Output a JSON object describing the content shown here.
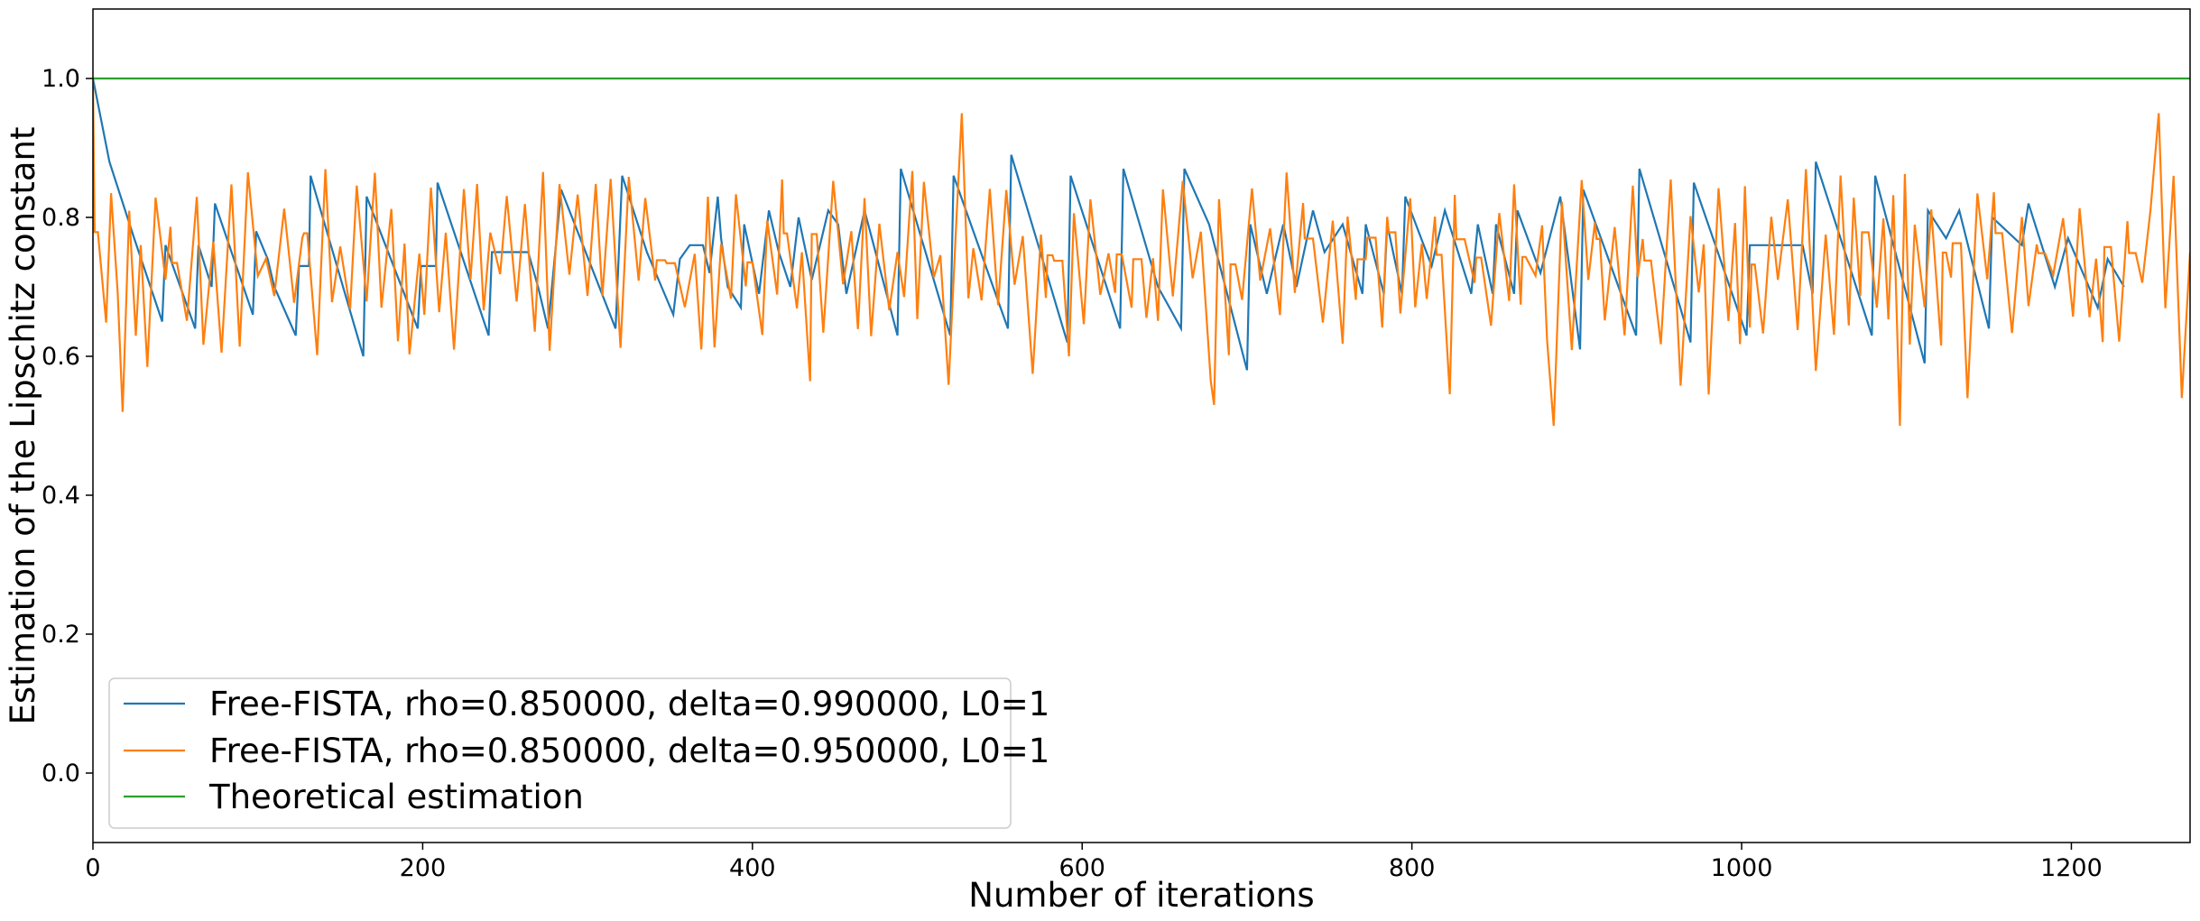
{
  "chart_data": {
    "type": "line",
    "title": "",
    "xlabel": "Number of iterations",
    "ylabel": "Estimation of the Lipschitz constant",
    "xlim": [
      0,
      1272
    ],
    "ylim": [
      -0.1,
      1.1
    ],
    "xticks": [
      0,
      200,
      400,
      600,
      800,
      1000,
      1200
    ],
    "yticks": [
      0.0,
      0.2,
      0.4,
      0.6,
      0.8,
      1.0
    ],
    "xtick_labels": [
      "0",
      "200",
      "400",
      "600",
      "800",
      "1000",
      "1200"
    ],
    "ytick_labels": [
      "0.0",
      "0.2",
      "0.4",
      "0.6",
      "0.8",
      "1.0"
    ],
    "grid": false,
    "legend_position": "lower-left",
    "series": [
      {
        "name": "Free-FISTA, rho=0.850000, delta=0.990000, L0=1",
        "color": "#1f77b4",
        "points": [
          [
            0,
            1.0
          ],
          [
            10,
            0.88
          ],
          [
            25,
            0.77
          ],
          [
            42,
            0.65
          ],
          [
            44,
            0.76
          ],
          [
            62,
            0.64
          ],
          [
            64,
            0.76
          ],
          [
            72,
            0.7
          ],
          [
            74,
            0.82
          ],
          [
            97,
            0.66
          ],
          [
            99,
            0.78
          ],
          [
            106,
            0.74
          ],
          [
            110,
            0.7
          ],
          [
            123,
            0.63
          ],
          [
            125,
            0.73
          ],
          [
            131,
            0.73
          ],
          [
            132,
            0.86
          ],
          [
            164,
            0.6
          ],
          [
            166,
            0.83
          ],
          [
            197,
            0.64
          ],
          [
            199,
            0.73
          ],
          [
            208,
            0.73
          ],
          [
            209,
            0.85
          ],
          [
            240,
            0.63
          ],
          [
            242,
            0.75
          ],
          [
            264,
            0.75
          ],
          [
            270,
            0.7
          ],
          [
            276,
            0.64
          ],
          [
            284,
            0.84
          ],
          [
            317,
            0.64
          ],
          [
            321,
            0.86
          ],
          [
            336,
            0.75
          ],
          [
            352,
            0.66
          ],
          [
            356,
            0.74
          ],
          [
            362,
            0.76
          ],
          [
            370,
            0.76
          ],
          [
            374,
            0.72
          ],
          [
            379,
            0.83
          ],
          [
            381,
            0.77
          ],
          [
            385,
            0.7
          ],
          [
            393,
            0.67
          ],
          [
            395,
            0.79
          ],
          [
            404,
            0.69
          ],
          [
            410,
            0.81
          ],
          [
            416,
            0.75
          ],
          [
            423,
            0.7
          ],
          [
            428,
            0.8
          ],
          [
            436,
            0.71
          ],
          [
            446,
            0.81
          ],
          [
            452,
            0.79
          ],
          [
            457,
            0.69
          ],
          [
            468,
            0.81
          ],
          [
            488,
            0.63
          ],
          [
            490,
            0.87
          ],
          [
            520,
            0.63
          ],
          [
            522,
            0.86
          ],
          [
            555,
            0.64
          ],
          [
            557,
            0.89
          ],
          [
            591,
            0.62
          ],
          [
            593,
            0.86
          ],
          [
            623,
            0.64
          ],
          [
            625,
            0.87
          ],
          [
            646,
            0.7
          ],
          [
            660,
            0.64
          ],
          [
            662,
            0.87
          ],
          [
            677,
            0.79
          ],
          [
            700,
            0.58
          ],
          [
            702,
            0.79
          ],
          [
            712,
            0.69
          ],
          [
            716,
            0.73
          ],
          [
            722,
            0.79
          ],
          [
            730,
            0.7
          ],
          [
            740,
            0.81
          ],
          [
            747,
            0.75
          ],
          [
            758,
            0.79
          ],
          [
            770,
            0.69
          ],
          [
            772,
            0.79
          ],
          [
            783,
            0.69
          ],
          [
            785,
            0.79
          ],
          [
            794,
            0.69
          ],
          [
            796,
            0.83
          ],
          [
            812,
            0.73
          ],
          [
            820,
            0.81
          ],
          [
            836,
            0.69
          ],
          [
            840,
            0.79
          ],
          [
            849,
            0.69
          ],
          [
            851,
            0.79
          ],
          [
            862,
            0.69
          ],
          [
            864,
            0.81
          ],
          [
            878,
            0.72
          ],
          [
            890,
            0.83
          ],
          [
            902,
            0.61
          ],
          [
            904,
            0.84
          ],
          [
            936,
            0.63
          ],
          [
            938,
            0.87
          ],
          [
            969,
            0.62
          ],
          [
            971,
            0.85
          ],
          [
            1003,
            0.63
          ],
          [
            1005,
            0.76
          ],
          [
            1037,
            0.76
          ],
          [
            1043,
            0.69
          ],
          [
            1045,
            0.88
          ],
          [
            1079,
            0.63
          ],
          [
            1081,
            0.86
          ],
          [
            1111,
            0.59
          ],
          [
            1113,
            0.81
          ],
          [
            1124,
            0.77
          ],
          [
            1132,
            0.81
          ],
          [
            1150,
            0.64
          ],
          [
            1152,
            0.8
          ],
          [
            1170,
            0.76
          ],
          [
            1174,
            0.82
          ],
          [
            1190,
            0.7
          ],
          [
            1198,
            0.77
          ],
          [
            1216,
            0.67
          ],
          [
            1222,
            0.74
          ],
          [
            1232,
            0.7
          ]
        ]
      },
      {
        "name": "Free-FISTA, rho=0.850000, delta=0.950000, L0=1",
        "color": "#ff7f0e",
        "seed": 7,
        "start": [
          0,
          1.0
        ],
        "n_points": 1272,
        "range": [
          0.5,
          0.95
        ],
        "notable_points": [
          [
            18,
            0.52
          ],
          [
            527,
            0.95
          ],
          [
            680,
            0.53
          ],
          [
            886,
            0.5
          ],
          [
            1096,
            0.5
          ],
          [
            1253,
            0.95
          ],
          [
            1267,
            0.54
          ],
          [
            1272,
            0.75
          ]
        ]
      },
      {
        "name": "Theoretical estimation",
        "color": "#2ca02c",
        "points": [
          [
            0,
            1.0
          ],
          [
            1272,
            1.0
          ]
        ]
      }
    ]
  }
}
